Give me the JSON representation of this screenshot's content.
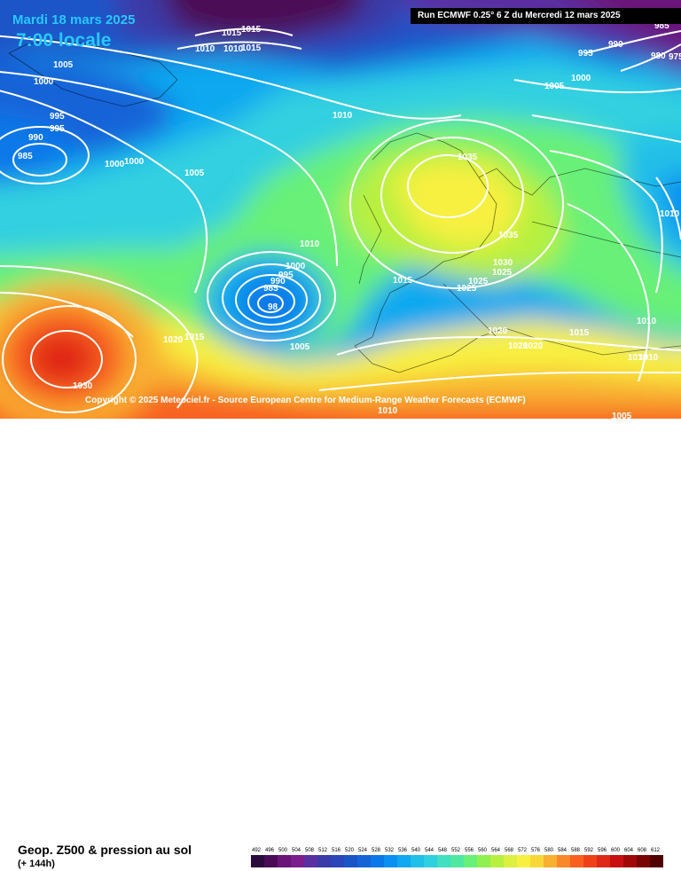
{
  "header": {
    "date": "Mardi 18 mars 2025",
    "time": "7:00 locale",
    "run": "Run ECMWF 0.25° 6 Z du Mercredi 12 mars 2025"
  },
  "footer": {
    "copyright": "Copyright © 2025 Meteociel.fr - Source European Centre for Medium-Range Weather Forecasts (ECMWF)",
    "parameter": "Geop. Z500 & pression au sol",
    "lead_time": "(+ 144h)"
  },
  "legend": {
    "values": [
      "492",
      "496",
      "500",
      "504",
      "508",
      "512",
      "516",
      "520",
      "524",
      "528",
      "532",
      "536",
      "540",
      "544",
      "548",
      "552",
      "556",
      "560",
      "564",
      "568",
      "572",
      "576",
      "580",
      "584",
      "588",
      "592",
      "596",
      "600",
      "604",
      "608",
      "612"
    ],
    "colors": [
      "#2a0a3a",
      "#4b0a55",
      "#6a1478",
      "#7c1e8c",
      "#5a2fa0",
      "#3a3aa8",
      "#2a46b8",
      "#1a55c8",
      "#1464d8",
      "#0a78e8",
      "#0a90f0",
      "#10a8f0",
      "#20c0e8",
      "#30d0e0",
      "#40e0c0",
      "#50e8a0",
      "#68f078",
      "#90f050",
      "#b8f040",
      "#dcf040",
      "#f8f040",
      "#f8d838",
      "#f8b030",
      "#f88828",
      "#f86020",
      "#f04018",
      "#e02818",
      "#c81010",
      "#a00808",
      "#780404",
      "#500000"
    ]
  },
  "pressure_labels": [
    {
      "text": "1015"
    },
    {
      "text": "1015"
    },
    {
      "text": "1015"
    },
    {
      "text": "1010"
    },
    {
      "text": "1010"
    },
    {
      "text": "1005"
    },
    {
      "text": "1000"
    },
    {
      "text": "995"
    },
    {
      "text": "995"
    },
    {
      "text": "990"
    },
    {
      "text": "985"
    },
    {
      "text": "1000"
    },
    {
      "text": "1000"
    },
    {
      "text": "1005"
    },
    {
      "text": "1010"
    },
    {
      "text": "1010"
    },
    {
      "text": "1000"
    },
    {
      "text": "995"
    },
    {
      "text": "990"
    },
    {
      "text": "985"
    },
    {
      "text": "98"
    },
    {
      "text": "1005"
    },
    {
      "text": "1020"
    },
    {
      "text": "1015"
    },
    {
      "text": "1030"
    },
    {
      "text": "1015"
    },
    {
      "text": "1025"
    },
    {
      "text": "1025"
    },
    {
      "text": "1030"
    },
    {
      "text": "1025"
    },
    {
      "text": "1035"
    },
    {
      "text": "1035"
    },
    {
      "text": "1020"
    },
    {
      "text": "1020"
    },
    {
      "text": "1020"
    },
    {
      "text": "1015"
    },
    {
      "text": "1010"
    },
    {
      "text": "1010"
    },
    {
      "text": "1005"
    },
    {
      "text": "1000"
    },
    {
      "text": "995"
    },
    {
      "text": "990"
    },
    {
      "text": "980"
    },
    {
      "text": "975"
    },
    {
      "text": "1010"
    },
    {
      "text": "1010"
    },
    {
      "text": "1010"
    },
    {
      "text": "1005"
    },
    {
      "text": "985"
    }
  ]
}
